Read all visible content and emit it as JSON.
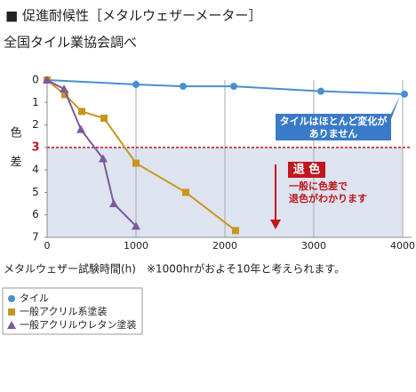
{
  "chart_data": {
    "type": "line",
    "title": "■ 促進耐候性［メタルウェザーメーター］",
    "subtitle": "全国タイル業協会調べ",
    "y_label": "色差",
    "x_label": "メタルウェザー試験時間(h)　※1000hrがおよそ10年と考えられます。",
    "xlim": [
      0,
      4000
    ],
    "xticks": [
      0,
      1000,
      2000,
      3000,
      4000
    ],
    "ylim": [
      0,
      7
    ],
    "yticks": [
      0,
      1,
      2,
      3,
      4,
      5,
      6,
      7
    ],
    "y_inverted": true,
    "threshold": 3,
    "grid": "x",
    "series": [
      {
        "name": "タイル",
        "color": "#4a8fd0",
        "marker": "circle",
        "x": [
          0,
          1000,
          1530,
          2100,
          3080,
          4020
        ],
        "values": [
          0,
          0.2,
          0.28,
          0.28,
          0.5,
          0.63
        ]
      },
      {
        "name": "一般アクリル系塗装",
        "color": "#c8961e",
        "marker": "square",
        "x": [
          0,
          200,
          390,
          640,
          1000,
          1560,
          2120
        ],
        "values": [
          0,
          0.65,
          1.4,
          1.7,
          3.7,
          5.0,
          6.7
        ]
      },
      {
        "name": "一般アクリルウレタン塗装",
        "color": "#7b5a9a",
        "marker": "triangle",
        "x": [
          0,
          190,
          380,
          630,
          750,
          1000
        ],
        "values": [
          0,
          0.4,
          2.2,
          3.5,
          5.5,
          6.5
        ]
      }
    ],
    "annotations": {
      "tile_note": [
        "タイルはほとんど変化が",
        "ありません"
      ],
      "fade_title": "退 色",
      "fade_note": [
        "一般に色差で",
        "退色がわかります"
      ]
    }
  }
}
